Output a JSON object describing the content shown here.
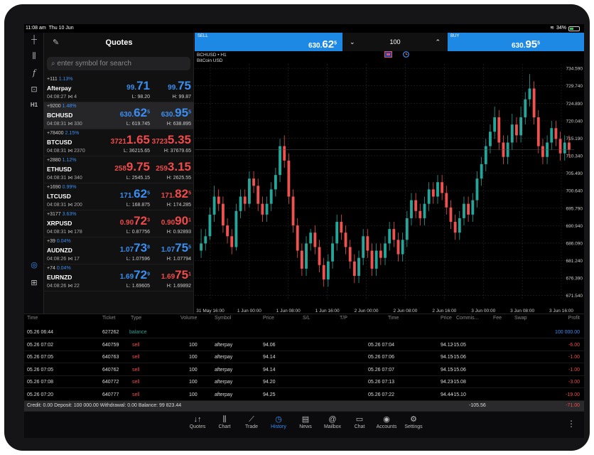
{
  "statusbar": {
    "time": "11:08 am",
    "date": "Thu 10 Jun",
    "battery": "34%"
  },
  "colors": {
    "accent": "#1e88e5",
    "bull": "#26a69a",
    "bear": "#ef5350",
    "blue_text": "#3b8ef0",
    "red_text": "#ef4b4b"
  },
  "left_toolbar": {
    "icons": [
      "crosshair-icon",
      "candlestick-icon",
      "function-icon",
      "objects-icon"
    ],
    "timeframe": "H1"
  },
  "quotes": {
    "title": "Quotes",
    "search_placeholder": "enter symbol for search",
    "items": [
      {
        "change": "+111",
        "pct": "1.13%",
        "symbol": "Afterpay",
        "time": "04:08:27",
        "spread": "4",
        "bid_main": "99.",
        "bid_big": "71",
        "bid_sup": "",
        "ask_main": "99.",
        "ask_big": "75",
        "ask_sup": "",
        "low": "L: 98.20",
        "high": "H: 99.87",
        "color": "blue"
      },
      {
        "change": "+9200",
        "pct": "1.48%",
        "symbol": "BCHUSD",
        "time": "04:08:31",
        "spread": "330",
        "bid_main": "630.",
        "bid_big": "62",
        "bid_sup": "5",
        "ask_main": "630.",
        "ask_big": "95",
        "ask_sup": "5",
        "low": "L: 619.745",
        "high": "H: 638.895",
        "color": "blue"
      },
      {
        "change": "+78400",
        "pct": "2.15%",
        "symbol": "BTCUSD",
        "time": "04:08:31",
        "spread": "2370",
        "bid_main": "3721",
        "bid_big": "1.65",
        "bid_sup": "",
        "ask_main": "3723",
        "ask_big": "5.35",
        "ask_sup": "",
        "low": "L: 36215.65",
        "high": "H: 37679.65",
        "color": "red"
      },
      {
        "change": "+2880",
        "pct": "1.12%",
        "symbol": "ETHUSD",
        "time": "04:08:31",
        "spread": "340",
        "bid_main": "258",
        "bid_big": "9.75",
        "bid_sup": "",
        "ask_main": "259",
        "ask_big": "3.15",
        "ask_sup": "",
        "low": "L: 2545.15",
        "high": "H: 2625.55",
        "color": "red"
      },
      {
        "change": "+1690",
        "pct": "0.99%",
        "symbol": "LTCUSD",
        "time": "04:08:31",
        "spread": "200",
        "bid_main": "171.",
        "bid_big": "62",
        "bid_sup": "5",
        "ask_main": "171.",
        "ask_big": "82",
        "ask_sup": "5",
        "low": "L: 168.875",
        "high": "H: 174.285",
        "color": "mixed"
      },
      {
        "change": "+3177",
        "pct": "3.63%",
        "symbol": "XRPUSD",
        "time": "04:08:31",
        "spread": "178",
        "bid_main": "0.90",
        "bid_big": "72",
        "bid_sup": "3",
        "ask_main": "0.90",
        "ask_big": "90",
        "ask_sup": "1",
        "low": "L: 0.87756",
        "high": "H: 0.92893",
        "color": "red"
      },
      {
        "change": "+39",
        "pct": "0.04%",
        "symbol": "AUDNZD",
        "time": "04:08:26",
        "spread": "17",
        "bid_main": "1.07",
        "bid_big": "73",
        "bid_sup": "8",
        "ask_main": "1.07",
        "ask_big": "75",
        "ask_sup": "5",
        "low": "L: 1.07596",
        "high": "H: 1.07794",
        "color": "blue"
      },
      {
        "change": "+74",
        "pct": "0.04%",
        "symbol": "EURNZD",
        "time": "04:08:26",
        "spread": "22",
        "bid_main": "1.69",
        "bid_big": "72",
        "bid_sup": "9",
        "ask_main": "1.69",
        "ask_big": "75",
        "ask_sup": "1",
        "low": "L: 1.69605",
        "high": "H: 1.69892",
        "color": "mixed"
      }
    ]
  },
  "tradebar": {
    "sell_label": "SELL",
    "sell_main": "630.",
    "sell_big": "62",
    "sell_sup": "5",
    "volume": "100",
    "buy_label": "BUY",
    "buy_main": "630.",
    "buy_big": "95",
    "buy_sup": "5"
  },
  "chart_data": {
    "type": "candlestick",
    "symbol_line": "BCHUSD • H1",
    "name_line": "BitCoin USD",
    "ylim": [
      670.3,
      735.8
    ],
    "y_ticks": [
      "734.590",
      "729.740",
      "724.890",
      "720.040",
      "715.190",
      "710.340",
      "705.490",
      "700.640",
      "695.790",
      "690.940",
      "686.090",
      "681.240",
      "676.390",
      "671.540"
    ],
    "x_ticks": [
      "31 May 16:00",
      "1 Jun 00:00",
      "1 Jun 08:00",
      "1 Jun 16:00",
      "2 Jun 00:00",
      "2 Jun 08:00",
      "2 Jun 16:00",
      "3 Jun 00:00",
      "3 Jun 08:00",
      "3 Jun 16:00"
    ],
    "grid": true,
    "candles": [
      [
        684,
        686,
        690,
        682
      ],
      [
        686,
        688,
        690,
        684
      ],
      [
        688,
        694,
        696,
        687
      ],
      [
        694,
        699,
        702,
        692
      ],
      [
        699,
        697,
        701,
        695
      ],
      [
        697,
        691,
        699,
        689
      ],
      [
        691,
        688,
        693,
        686
      ],
      [
        688,
        685,
        690,
        683
      ],
      [
        685,
        695,
        697,
        684
      ],
      [
        695,
        699,
        701,
        693
      ],
      [
        699,
        697,
        701,
        695
      ],
      [
        697,
        704,
        706,
        696
      ],
      [
        704,
        702,
        706,
        700
      ],
      [
        702,
        697,
        704,
        695
      ],
      [
        697,
        694,
        699,
        692
      ],
      [
        694,
        697,
        699,
        692
      ],
      [
        697,
        701,
        703,
        695
      ],
      [
        701,
        705,
        707,
        699
      ],
      [
        705,
        713,
        715,
        703
      ],
      [
        713,
        709,
        716,
        707
      ],
      [
        709,
        699,
        711,
        697
      ],
      [
        699,
        691,
        701,
        689
      ],
      [
        691,
        684,
        693,
        682
      ],
      [
        684,
        679,
        686,
        677
      ],
      [
        679,
        686,
        688,
        677
      ],
      [
        686,
        689,
        690,
        684
      ],
      [
        689,
        685,
        691,
        683
      ],
      [
        685,
        680,
        687,
        678
      ],
      [
        680,
        676,
        682,
        674
      ],
      [
        676,
        681,
        683,
        674
      ],
      [
        681,
        686,
        688,
        679
      ],
      [
        686,
        692,
        694,
        684
      ],
      [
        692,
        689,
        694,
        687
      ],
      [
        689,
        685,
        691,
        683
      ],
      [
        685,
        681,
        687,
        679
      ],
      [
        681,
        677,
        683,
        675
      ],
      [
        677,
        682,
        684,
        675
      ],
      [
        682,
        688,
        690,
        680
      ],
      [
        688,
        684,
        690,
        682
      ],
      [
        684,
        679,
        686,
        677
      ],
      [
        679,
        684,
        686,
        677
      ],
      [
        684,
        682,
        686,
        680
      ],
      [
        682,
        686,
        688,
        680
      ],
      [
        686,
        690,
        692,
        684
      ],
      [
        690,
        687,
        692,
        685
      ],
      [
        687,
        683,
        689,
        681
      ],
      [
        683,
        687,
        689,
        681
      ],
      [
        687,
        693,
        695,
        685
      ],
      [
        693,
        698,
        700,
        691
      ],
      [
        698,
        695,
        700,
        693
      ],
      [
        695,
        693,
        697,
        691
      ],
      [
        693,
        697,
        699,
        691
      ],
      [
        697,
        701,
        703,
        695
      ],
      [
        701,
        699,
        703,
        697
      ],
      [
        699,
        703,
        705,
        697
      ],
      [
        703,
        700,
        705,
        698
      ],
      [
        700,
        696,
        702,
        694
      ],
      [
        696,
        692,
        698,
        690
      ],
      [
        692,
        689,
        694,
        687
      ],
      [
        689,
        693,
        695,
        687
      ],
      [
        693,
        697,
        699,
        691
      ],
      [
        697,
        694,
        699,
        692
      ],
      [
        694,
        698,
        700,
        692
      ],
      [
        698,
        704,
        706,
        696
      ],
      [
        704,
        708,
        710,
        702
      ],
      [
        708,
        713,
        715,
        706
      ],
      [
        713,
        717,
        719,
        711
      ],
      [
        717,
        721,
        724,
        715
      ],
      [
        721,
        714,
        723,
        712
      ],
      [
        714,
        710,
        716,
        708
      ],
      [
        710,
        714,
        716,
        708
      ],
      [
        714,
        719,
        722,
        712
      ],
      [
        719,
        716,
        721,
        714
      ],
      [
        716,
        721,
        724,
        714
      ],
      [
        721,
        726,
        728,
        719
      ],
      [
        726,
        729,
        733,
        724
      ],
      [
        729,
        721,
        731,
        719
      ],
      [
        721,
        713,
        723,
        711
      ],
      [
        713,
        710,
        715,
        708
      ],
      [
        710,
        714,
        716,
        708
      ],
      [
        714,
        718,
        720,
        712
      ],
      [
        718,
        715,
        720,
        713
      ],
      [
        715,
        711,
        717,
        709
      ],
      [
        711,
        714,
        716,
        709
      ],
      [
        714,
        712,
        716,
        710
      ]
    ]
  },
  "history": {
    "columns": [
      "Time",
      "Ticket",
      "Type",
      "Volume",
      "Symbol",
      "Price",
      "S/L",
      "T/P",
      "Time",
      "Price",
      "Commis...",
      "Fee",
      "Swap",
      "Profit"
    ],
    "rows": [
      {
        "time": "05.26 06:44",
        "ticket": "627262",
        "type": "balance",
        "volume": "",
        "symbol": "",
        "price": "",
        "time2": "",
        "price2": "",
        "commission": "",
        "profit": "100 000.00",
        "kind": "balance"
      },
      {
        "time": "05.26 07:02",
        "ticket": "640759",
        "type": "sell",
        "volume": "100",
        "symbol": "afterpay",
        "price": "94.06",
        "time2": "05.26 07:04",
        "price2": "94.12",
        "commission": "-15.05",
        "profit": "-6.00",
        "kind": "sell"
      },
      {
        "time": "05.26 07:05",
        "ticket": "640763",
        "type": "sell",
        "volume": "100",
        "symbol": "afterpay",
        "price": "94.14",
        "time2": "05.26 07:06",
        "price2": "94.15",
        "commission": "-15.06",
        "profit": "-1.00",
        "kind": "sell"
      },
      {
        "time": "05.26 07:05",
        "ticket": "640762",
        "type": "sell",
        "volume": "100",
        "symbol": "afterpay",
        "price": "94.14",
        "time2": "05.26 07:07",
        "price2": "94.15",
        "commission": "-15.06",
        "profit": "-1.00",
        "kind": "sell"
      },
      {
        "time": "05.26 07:08",
        "ticket": "640772",
        "type": "sell",
        "volume": "100",
        "symbol": "afterpay",
        "price": "94.20",
        "time2": "05.26 07:13",
        "price2": "94.23",
        "commission": "-15.08",
        "profit": "-3.00",
        "kind": "sell"
      },
      {
        "time": "05.26 07:20",
        "ticket": "640777",
        "type": "sell",
        "volume": "100",
        "symbol": "afterpay",
        "price": "94.25",
        "time2": "05.26 07:22",
        "price2": "94.44",
        "commission": "-15.10",
        "profit": "-19.00",
        "kind": "sell"
      },
      {
        "time": "05.26 07:15",
        "ticket": "640774",
        "type": "sell",
        "volume": "100",
        "symbol": "afterpay",
        "price": "94.13",
        "time2": "05.26 07:22",
        "price2": "94.50",
        "commission": "-15.09",
        "profit": "-37.00",
        "kind": "sell"
      },
      {
        "time": "05.26 07:23",
        "ticket": "640781",
        "type": "sell",
        "volume": "100",
        "symbol": "afterpay",
        "price": "94.45",
        "time2": "05.26 07:24",
        "price2": "94.49",
        "commission": "-15.12",
        "profit": "-4.00",
        "kind": "sell"
      }
    ],
    "summary": {
      "text": "Credit: 0.00 Deposit: 100 000.00 Withdrawal: 0.00 Balance: 99 823.44",
      "commission_total": "-105.56",
      "profit_total": "-71.00"
    }
  },
  "bottomnav": {
    "items": [
      {
        "label": "Quotes",
        "icon": "quotes-icon",
        "glyph": "↓↑"
      },
      {
        "label": "Chart",
        "icon": "chart-icon",
        "glyph": "⫼"
      },
      {
        "label": "Trade",
        "icon": "trade-icon",
        "glyph": "⟋"
      },
      {
        "label": "History",
        "icon": "history-icon",
        "glyph": "◷"
      },
      {
        "label": "News",
        "icon": "news-icon",
        "glyph": "▤"
      },
      {
        "label": "Mailbox",
        "icon": "mailbox-icon",
        "glyph": "@"
      },
      {
        "label": "Chat",
        "icon": "chat-icon",
        "glyph": "▭"
      },
      {
        "label": "Accounts",
        "icon": "accounts-icon",
        "glyph": "◉"
      },
      {
        "label": "Settings",
        "icon": "settings-icon",
        "glyph": "⚙"
      }
    ],
    "active": "History"
  }
}
